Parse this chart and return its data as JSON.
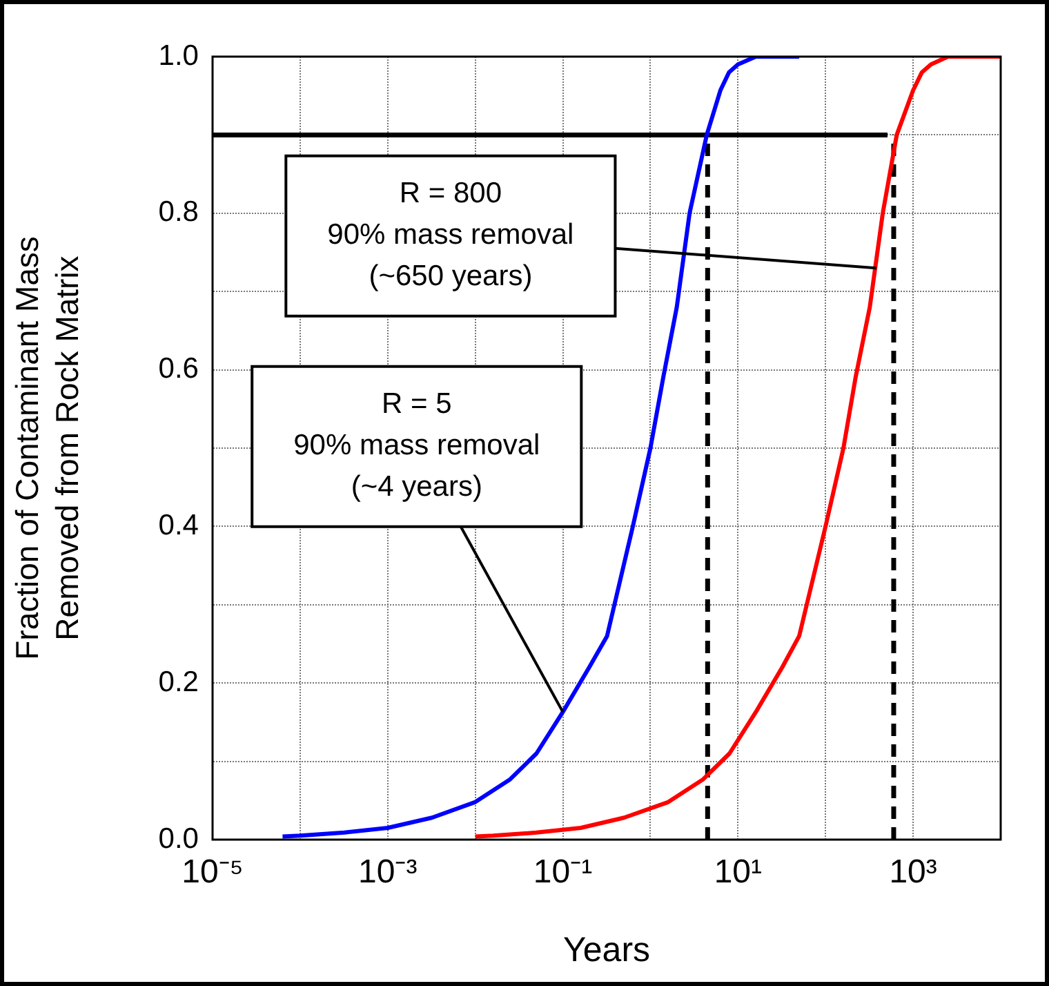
{
  "chart_data": {
    "type": "line",
    "xlabel": "Years",
    "ylabel": "Fraction of Contaminant Mass\nRemoved from Rock Matrix",
    "log": "x",
    "grid": true,
    "legend": false,
    "marker": "none",
    "xlim": [
      1e-05,
      10000
    ],
    "xticks": [
      {
        "value": 1e-05,
        "label": "10⁻⁵"
      },
      {
        "value": 0.0001,
        "label": null
      },
      {
        "value": 0.001,
        "label": "10⁻³"
      },
      {
        "value": 0.01,
        "label": null
      },
      {
        "value": 0.1,
        "label": "10⁻¹"
      },
      {
        "value": 1,
        "label": null
      },
      {
        "value": 10,
        "label": "10¹"
      },
      {
        "value": 100,
        "label": null
      },
      {
        "value": 1000,
        "label": "10³"
      },
      {
        "value": 10000,
        "label": null
      }
    ],
    "ylim": [
      0,
      1
    ],
    "yticks": [
      {
        "value": 0,
        "label": "0.0"
      },
      {
        "value": 0.1,
        "label": null
      },
      {
        "value": 0.2,
        "label": "0.2"
      },
      {
        "value": 0.3,
        "label": null
      },
      {
        "value": 0.4,
        "label": "0.4"
      },
      {
        "value": 0.5,
        "label": null
      },
      {
        "value": 0.6,
        "label": "0.6"
      },
      {
        "value": 0.7,
        "label": null
      },
      {
        "value": 0.8,
        "label": "0.8"
      },
      {
        "value": 0.9,
        "label": null
      },
      {
        "value": 1,
        "label": "1.0"
      }
    ],
    "series": [
      {
        "color": "#0000ff",
        "line_style": "solid",
        "x": [
          6.3e-05,
          0.0001,
          0.00032,
          0.001,
          0.0032,
          0.01,
          0.025,
          0.05,
          0.1,
          0.2,
          0.32,
          0.63,
          1,
          1.4,
          2,
          2.8,
          4.4,
          6.3,
          7.9,
          10,
          16,
          50
        ],
        "values": [
          0.004,
          0.005,
          0.009,
          0.015,
          0.028,
          0.048,
          0.077,
          0.11,
          0.163,
          0.22,
          0.26,
          0.4,
          0.5,
          0.59,
          0.68,
          0.8,
          0.9,
          0.957,
          0.98,
          0.99,
          1,
          1
        ]
      },
      {
        "color": "#ff0000",
        "line_style": "solid",
        "x": [
          0.01,
          0.016,
          0.05,
          0.16,
          0.5,
          1.6,
          4,
          8,
          16,
          32,
          50,
          100,
          160,
          220,
          320,
          450,
          650,
          1000,
          1260,
          1600,
          2500,
          10000
        ],
        "values": [
          0.004,
          0.005,
          0.009,
          0.015,
          0.028,
          0.048,
          0.077,
          0.11,
          0.163,
          0.22,
          0.26,
          0.4,
          0.5,
          0.59,
          0.68,
          0.8,
          0.9,
          0.957,
          0.98,
          0.99,
          1,
          1
        ]
      },
      {
        "color": "#000000",
        "line_style": "solid",
        "x": [
          1e-05,
          510
        ],
        "values": [
          0.9,
          0.9
        ]
      },
      {
        "color": "#000000",
        "line_style": "dashed",
        "x": [
          4.5,
          4.5
        ],
        "values": [
          0,
          0.9
        ]
      },
      {
        "color": "#000000",
        "line_style": "dashed",
        "x": [
          600,
          600
        ],
        "values": [
          0,
          0.9
        ]
      }
    ],
    "annotations": [
      {
        "text": "R = 800\n90% mass removal\n(~650 years)",
        "x": 380,
        "y": 0.73
      },
      {
        "text": "R = 5\n90% mass removal\n(~4 years)",
        "x": 0.1,
        "y": 0.163
      }
    ]
  }
}
